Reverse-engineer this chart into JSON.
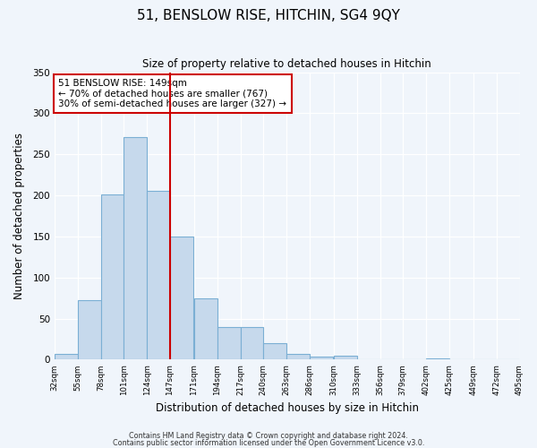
{
  "title": "51, BENSLOW RISE, HITCHIN, SG4 9QY",
  "subtitle": "Size of property relative to detached houses in Hitchin",
  "xlabel": "Distribution of detached houses by size in Hitchin",
  "ylabel": "Number of detached properties",
  "bar_values": [
    7,
    73,
    201,
    271,
    205,
    150,
    75,
    40,
    40,
    20,
    7,
    4,
    5,
    0,
    0,
    0,
    2,
    0,
    0,
    0
  ],
  "bin_labels": [
    "32sqm",
    "55sqm",
    "78sqm",
    "101sqm",
    "124sqm",
    "147sqm",
    "171sqm",
    "194sqm",
    "217sqm",
    "240sqm",
    "263sqm",
    "286sqm",
    "310sqm",
    "333sqm",
    "356sqm",
    "379sqm",
    "402sqm",
    "425sqm",
    "449sqm",
    "472sqm",
    "495sqm"
  ],
  "bar_color": "#c6d9ec",
  "bar_edge_color": "#7bafd4",
  "vline_x": 147,
  "vline_color": "#cc0000",
  "annotation_text": "51 BENSLOW RISE: 149sqm\n← 70% of detached houses are smaller (767)\n30% of semi-detached houses are larger (327) →",
  "annotation_box_color": "#ffffff",
  "annotation_box_edge": "#cc0000",
  "ylim": [
    0,
    350
  ],
  "yticks": [
    0,
    50,
    100,
    150,
    200,
    250,
    300,
    350
  ],
  "footer1": "Contains HM Land Registry data © Crown copyright and database right 2024.",
  "footer2": "Contains public sector information licensed under the Open Government Licence v3.0.",
  "bg_color": "#f0f5fb",
  "plot_bg_color": "#f0f5fb",
  "bins_left_edges": [
    32,
    55,
    78,
    101,
    124,
    147,
    171,
    194,
    217,
    240,
    263,
    286,
    310,
    333,
    356,
    379,
    402,
    425,
    449,
    472
  ],
  "bin_width": 23
}
